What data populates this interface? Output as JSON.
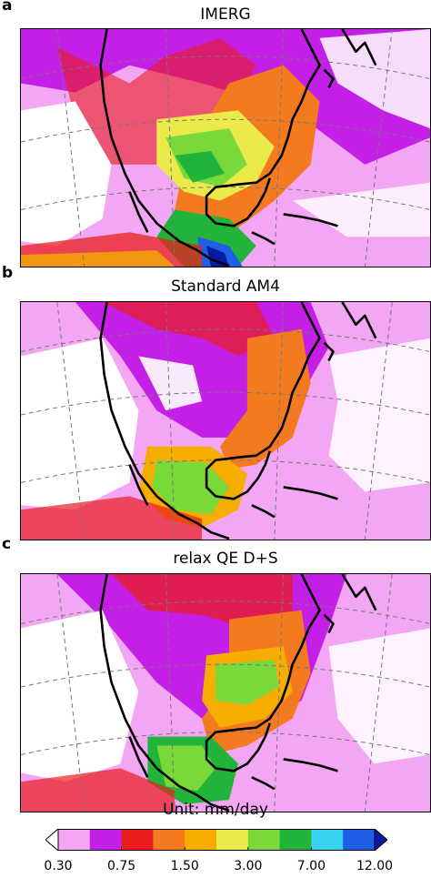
{
  "panels": [
    {
      "letter": "a",
      "title": "IMERG"
    },
    {
      "letter": "b",
      "title": "Standard AM4"
    },
    {
      "letter": "c",
      "title": "relax QE D+S"
    }
  ],
  "colorbar": {
    "title": "Unit: mm/day",
    "colors": [
      "#ffffff",
      "#f3a6f3",
      "#c41fe6",
      "#ea1d1d",
      "#f47a1f",
      "#f6ad00",
      "#eaea4a",
      "#7ad93a",
      "#22b43a",
      "#36d2ef",
      "#1e5fe6",
      "#0a1aa0"
    ],
    "tick_labels": [
      "0.30",
      "0.75",
      "1.50",
      "3.00",
      "7.00",
      "12.00"
    ],
    "tick_positions_index": [
      1,
      3,
      5,
      7,
      9,
      11
    ]
  }
}
